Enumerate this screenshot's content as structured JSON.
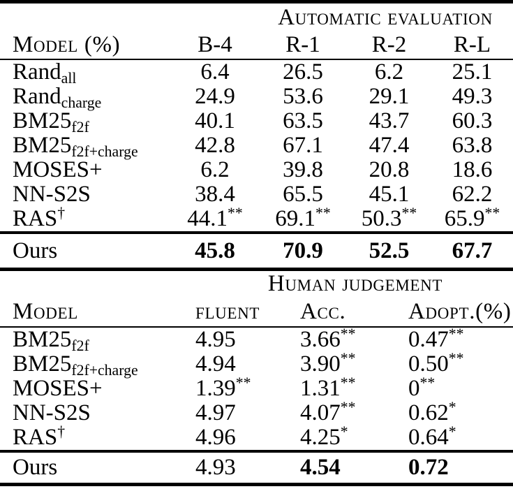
{
  "page": {
    "background": "#ffffff",
    "text_color": "#000000",
    "rule_color": "#000000"
  },
  "table1": {
    "group_header": "Automatic evaluation",
    "col_headers": [
      "Model (%)",
      "B-4",
      "R-1",
      "R-2",
      "R-L"
    ],
    "rows": [
      {
        "label": "Rand",
        "sub": "all",
        "values": [
          "6.4",
          "26.5",
          "6.2",
          "25.1"
        ]
      },
      {
        "label": "Rand",
        "sub": "charge",
        "values": [
          "24.9",
          "53.6",
          "29.1",
          "49.3"
        ]
      },
      {
        "label": "BM25",
        "sub": "f2f",
        "values": [
          "40.1",
          "63.5",
          "43.7",
          "60.3"
        ]
      },
      {
        "label": "BM25",
        "sub": "f2f+charge",
        "values": [
          "42.8",
          "67.1",
          "47.4",
          "63.8"
        ]
      },
      {
        "label": "MOSES+",
        "values": [
          "6.2",
          "39.8",
          "20.8",
          "18.6"
        ]
      },
      {
        "label": "NN-S2S",
        "values": [
          "38.4",
          "65.5",
          "45.1",
          "62.2"
        ]
      },
      {
        "label": "RAS",
        "sup": "†",
        "values": [
          "44.1**",
          "69.1**",
          "50.3**",
          "65.9**"
        ]
      }
    ],
    "ours_row": {
      "label": "Ours",
      "values": [
        "45.8",
        "70.9",
        "52.5",
        "67.7"
      ],
      "bold": [
        true,
        true,
        true,
        true
      ]
    }
  },
  "table2": {
    "group_header": "Human judgement",
    "col_headers": [
      "Model",
      "fluent",
      "Acc.",
      "Adopt.(%)"
    ],
    "rows": [
      {
        "label": "BM25",
        "sub": "f2f",
        "values": [
          "4.95",
          "3.66**",
          "0.47**"
        ]
      },
      {
        "label": "BM25",
        "sub": "f2f+charge",
        "values": [
          "4.94",
          "3.90**",
          "0.50**"
        ]
      },
      {
        "label": "MOSES+",
        "values": [
          "1.39**",
          "1.31**",
          "0**"
        ]
      },
      {
        "label": "NN-S2S",
        "values": [
          "4.97",
          "4.07**",
          "0.62*"
        ]
      },
      {
        "label": "RAS",
        "sup": "†",
        "values": [
          "4.96",
          "4.25*",
          "0.64*"
        ]
      }
    ],
    "ours_row": {
      "label": "Ours",
      "values": [
        "4.93",
        "4.54",
        "0.72"
      ],
      "bold": [
        false,
        true,
        true
      ]
    }
  }
}
